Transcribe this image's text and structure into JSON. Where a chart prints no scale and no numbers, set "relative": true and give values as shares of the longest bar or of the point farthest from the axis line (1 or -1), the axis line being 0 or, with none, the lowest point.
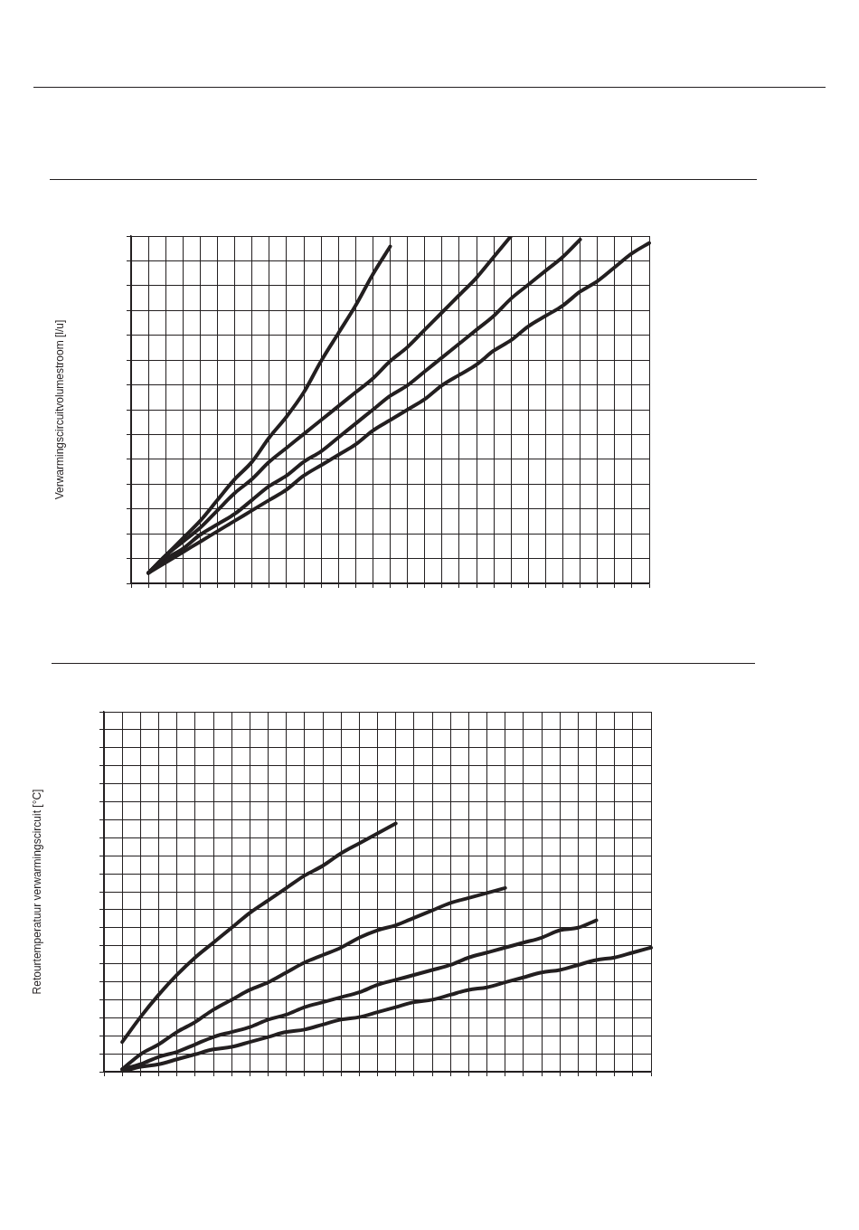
{
  "chart_data": [
    {
      "type": "line",
      "ylabel": "Verwarmingscircuitvolumestroom [l/u]",
      "relative": true,
      "grid": true,
      "marker": "none",
      "categories": [
        null,
        null,
        null,
        null,
        null,
        null,
        null,
        null,
        null,
        null,
        null,
        null,
        null,
        null,
        null,
        null,
        null,
        null,
        null,
        null,
        null,
        null,
        null,
        null,
        null,
        null,
        null,
        null,
        null,
        null,
        null
      ],
      "series": [
        {
          "color": "#231f20",
          "values": [
            null,
            0.03,
            0.08,
            0.13,
            0.18,
            0.24,
            0.3,
            0.35,
            0.42,
            0.48,
            0.55,
            0.64,
            0.72,
            0.8,
            0.89,
            0.97,
            null,
            null,
            null,
            null,
            null,
            null,
            null,
            null,
            null,
            null,
            null,
            null,
            null,
            null,
            null
          ]
        },
        {
          "color": "#231f20",
          "values": [
            null,
            0.03,
            0.08,
            0.12,
            0.16,
            0.21,
            0.26,
            0.3,
            0.35,
            0.39,
            0.43,
            0.47,
            0.51,
            0.55,
            0.59,
            0.64,
            0.68,
            0.73,
            0.78,
            0.83,
            0.88,
            0.94,
            1.0,
            null,
            null,
            null,
            null,
            null,
            null,
            null,
            null
          ]
        },
        {
          "color": "#231f20",
          "values": [
            null,
            0.03,
            0.07,
            0.1,
            0.14,
            0.17,
            0.2,
            0.24,
            0.28,
            0.31,
            0.35,
            0.38,
            0.42,
            0.46,
            0.5,
            0.54,
            0.57,
            0.61,
            0.65,
            0.69,
            0.73,
            0.77,
            0.82,
            0.86,
            0.9,
            0.94,
            0.99,
            null,
            null,
            null,
            null
          ]
        },
        {
          "color": "#231f20",
          "values": [
            null,
            0.03,
            0.06,
            0.09,
            0.12,
            0.15,
            0.18,
            0.21,
            0.24,
            0.27,
            0.31,
            0.34,
            0.37,
            0.4,
            0.44,
            0.47,
            0.5,
            0.53,
            0.57,
            0.6,
            0.63,
            0.67,
            0.7,
            0.74,
            0.77,
            0.8,
            0.84,
            0.87,
            0.91,
            0.95,
            0.98
          ]
        }
      ]
    },
    {
      "type": "line",
      "ylabel": "Retourtemperatuur verwarmingscircuit [°C]",
      "relative": true,
      "grid": true,
      "marker": "none",
      "categories": [
        null,
        null,
        null,
        null,
        null,
        null,
        null,
        null,
        null,
        null,
        null,
        null,
        null,
        null,
        null,
        null,
        null,
        null,
        null,
        null,
        null,
        null,
        null,
        null,
        null,
        null,
        null,
        null,
        null,
        null,
        null
      ],
      "series": [
        {
          "color": "#231f20",
          "values": [
            null,
            0.12,
            0.22,
            0.31,
            0.39,
            0.46,
            0.52,
            0.58,
            0.64,
            0.69,
            0.74,
            0.79,
            0.83,
            0.88,
            0.92,
            0.96,
            1.0,
            null,
            null,
            null,
            null,
            null,
            null,
            null,
            null,
            null,
            null,
            null,
            null,
            null,
            null
          ]
        },
        {
          "color": "#231f20",
          "values": [
            null,
            0.01,
            0.07,
            0.11,
            0.16,
            0.2,
            0.25,
            0.29,
            0.33,
            0.36,
            0.4,
            0.44,
            0.47,
            0.5,
            0.54,
            0.57,
            0.59,
            0.62,
            0.65,
            0.68,
            0.7,
            0.72,
            0.74,
            null,
            null,
            null,
            null,
            null,
            null,
            null,
            null
          ]
        },
        {
          "color": "#231f20",
          "values": [
            null,
            0.01,
            0.03,
            0.06,
            0.08,
            0.11,
            0.14,
            0.16,
            0.18,
            0.21,
            0.23,
            0.26,
            0.28,
            0.3,
            0.32,
            0.35,
            0.37,
            0.39,
            0.41,
            0.43,
            0.46,
            0.48,
            0.5,
            0.52,
            0.54,
            0.57,
            0.58,
            0.61,
            null,
            null,
            null
          ]
        },
        {
          "color": "#231f20",
          "values": [
            null,
            0,
            0.02,
            0.03,
            0.05,
            0.07,
            0.09,
            0.1,
            0.12,
            0.14,
            0.16,
            0.17,
            0.19,
            0.21,
            0.22,
            0.24,
            0.26,
            0.28,
            0.29,
            0.31,
            0.33,
            0.34,
            0.36,
            0.38,
            0.4,
            0.41,
            0.43,
            0.45,
            0.46,
            0.48,
            0.5
          ]
        }
      ]
    }
  ]
}
